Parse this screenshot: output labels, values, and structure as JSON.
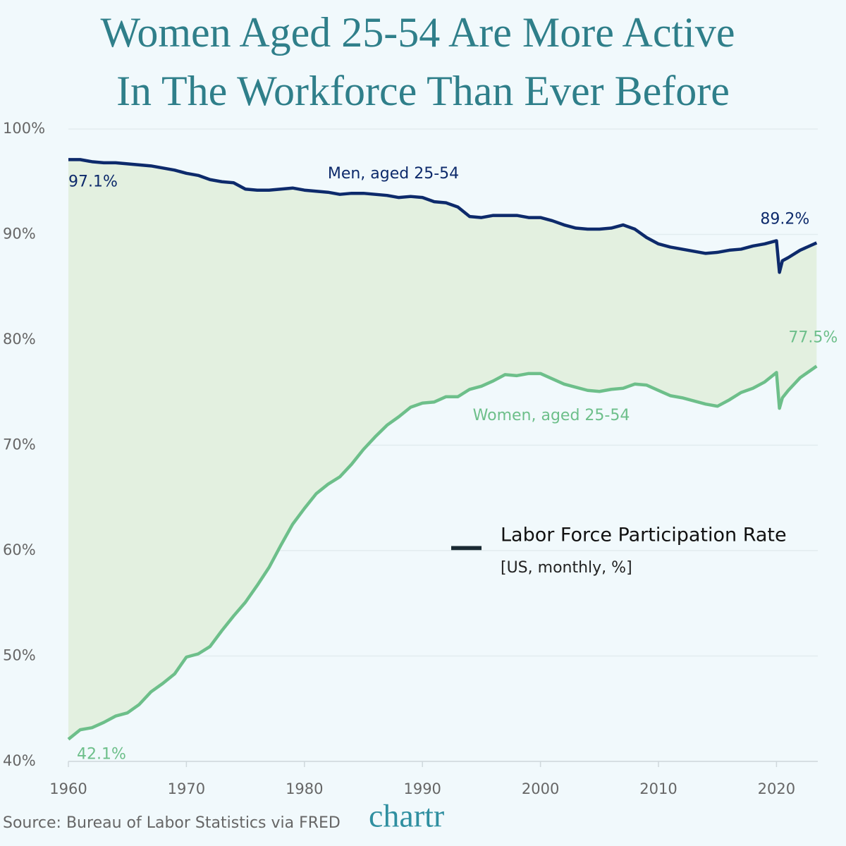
{
  "chart_data": {
    "type": "line",
    "title": "Women Aged 25-54 Are More Active In The Workforce Than Ever Before",
    "legend": {
      "title": "Labor Force Participation Rate",
      "note": "[US, monthly, %]"
    },
    "source": "Source: Bureau of Labor Statistics via FRED",
    "logo": "chartr",
    "x": [
      1960,
      1961,
      1962,
      1963,
      1964,
      1965,
      1966,
      1967,
      1968,
      1969,
      1970,
      1971,
      1972,
      1973,
      1974,
      1975,
      1976,
      1977,
      1978,
      1979,
      1980,
      1981,
      1982,
      1983,
      1984,
      1985,
      1986,
      1987,
      1988,
      1989,
      1990,
      1991,
      1992,
      1993,
      1994,
      1995,
      1996,
      1997,
      1998,
      1999,
      2000,
      2001,
      2002,
      2003,
      2004,
      2005,
      2006,
      2007,
      2008,
      2009,
      2010,
      2011,
      2012,
      2013,
      2014,
      2015,
      2016,
      2017,
      2018,
      2019,
      2020,
      2020.25,
      2020.5,
      2021,
      2022,
      2023.4
    ],
    "series": [
      {
        "name": "Men, aged 25-54",
        "color": "#0d2a6b",
        "values": [
          97.1,
          97.1,
          96.9,
          96.8,
          96.8,
          96.7,
          96.6,
          96.5,
          96.3,
          96.1,
          95.8,
          95.6,
          95.2,
          95.0,
          94.9,
          94.3,
          94.2,
          94.2,
          94.3,
          94.4,
          94.2,
          94.1,
          94.0,
          93.8,
          93.9,
          93.9,
          93.8,
          93.7,
          93.5,
          93.6,
          93.5,
          93.1,
          93.0,
          92.6,
          91.7,
          91.6,
          91.8,
          91.8,
          91.8,
          91.6,
          91.6,
          91.3,
          90.9,
          90.6,
          90.5,
          90.5,
          90.6,
          90.9,
          90.5,
          89.7,
          89.1,
          88.8,
          88.6,
          88.4,
          88.2,
          88.3,
          88.5,
          88.6,
          88.9,
          89.1,
          89.4,
          86.4,
          87.5,
          87.8,
          88.5,
          89.2
        ],
        "value_labels": [
          "97.1%",
          null,
          null,
          null,
          null,
          null,
          null,
          null,
          null,
          null,
          null,
          null,
          null,
          null,
          null,
          null,
          null,
          null,
          null,
          null,
          null,
          null,
          null,
          null,
          null,
          null,
          null,
          null,
          null,
          null,
          null,
          null,
          null,
          null,
          null,
          null,
          null,
          null,
          null,
          null,
          null,
          null,
          null,
          null,
          null,
          null,
          null,
          null,
          null,
          null,
          null,
          null,
          null,
          null,
          null,
          null,
          null,
          null,
          null,
          null,
          null,
          null,
          null,
          null,
          null,
          "89.2%"
        ]
      },
      {
        "name": "Women, aged 25-54",
        "color": "#6dbf8a",
        "values": [
          42.1,
          43.0,
          43.2,
          43.7,
          44.3,
          44.6,
          45.4,
          46.6,
          47.4,
          48.3,
          49.9,
          50.2,
          50.9,
          52.4,
          53.8,
          55.1,
          56.7,
          58.4,
          60.5,
          62.5,
          64.0,
          65.4,
          66.3,
          67.0,
          68.2,
          69.6,
          70.8,
          71.9,
          72.7,
          73.6,
          74.0,
          74.1,
          74.6,
          74.6,
          75.3,
          75.6,
          76.1,
          76.7,
          76.6,
          76.8,
          76.8,
          76.3,
          75.8,
          75.5,
          75.2,
          75.1,
          75.3,
          75.4,
          75.8,
          75.7,
          75.2,
          74.7,
          74.5,
          74.2,
          73.9,
          73.7,
          74.3,
          75.0,
          75.4,
          76.0,
          76.9,
          73.5,
          74.5,
          75.2,
          76.4,
          77.5
        ],
        "value_labels": [
          "42.1%",
          null,
          null,
          null,
          null,
          null,
          null,
          null,
          null,
          null,
          null,
          null,
          null,
          null,
          null,
          null,
          null,
          null,
          null,
          null,
          null,
          null,
          null,
          null,
          null,
          null,
          null,
          null,
          null,
          null,
          null,
          null,
          null,
          null,
          null,
          null,
          null,
          null,
          null,
          null,
          null,
          null,
          null,
          null,
          null,
          null,
          null,
          null,
          null,
          null,
          null,
          null,
          null,
          null,
          null,
          null,
          null,
          null,
          null,
          null,
          null,
          null,
          null,
          null,
          null,
          "77.5%"
        ]
      }
    ],
    "xlim": [
      1960,
      2023.5
    ],
    "xticks": [
      1960,
      1970,
      1980,
      1990,
      2000,
      2010,
      2020
    ],
    "ylim": [
      40,
      100
    ],
    "yticks": [
      {
        "value": 40,
        "label": "40%"
      },
      {
        "value": 50,
        "label": "50%"
      },
      {
        "value": 60,
        "label": "60%"
      },
      {
        "value": 70,
        "label": "70%"
      },
      {
        "value": 80,
        "label": "80%"
      },
      {
        "value": 90,
        "label": "90%"
      },
      {
        "value": 100,
        "label": "100%"
      }
    ],
    "grid": true,
    "fill_between": "#e3f0e0"
  }
}
